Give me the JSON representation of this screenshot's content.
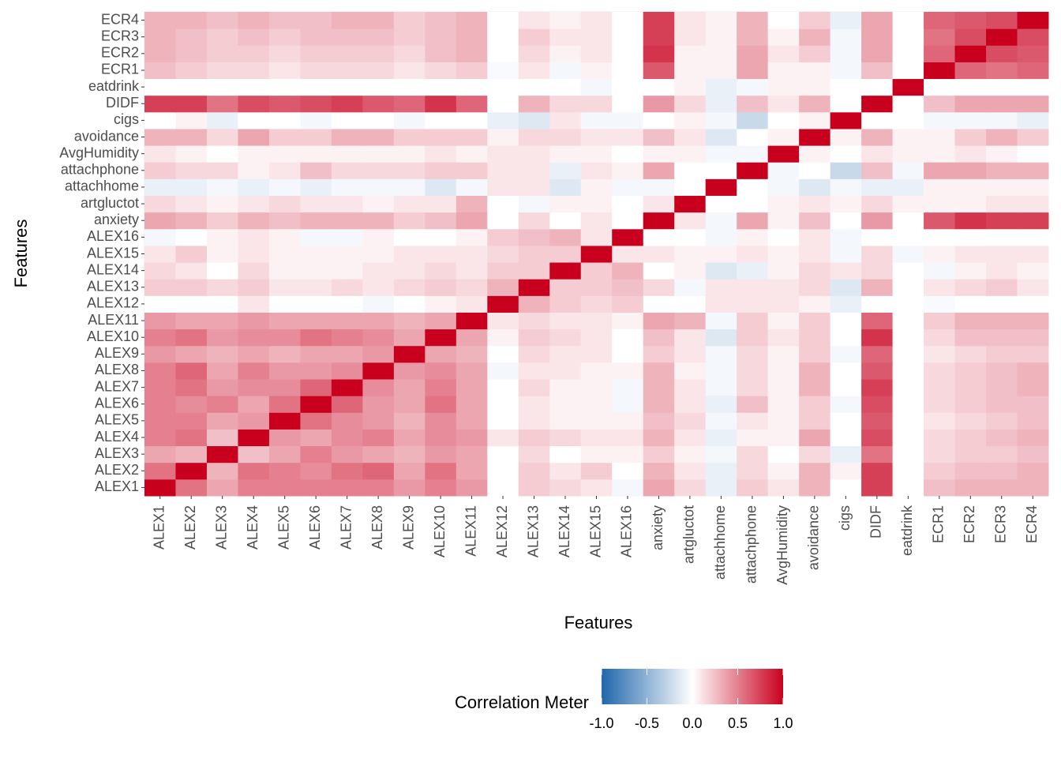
{
  "chart_data": {
    "type": "heatmap",
    "x_label": "Features",
    "y_label": "Features",
    "x": [
      "ALEX1",
      "ALEX2",
      "ALEX3",
      "ALEX4",
      "ALEX5",
      "ALEX6",
      "ALEX7",
      "ALEX8",
      "ALEX9",
      "ALEX10",
      "ALEX11",
      "ALEX12",
      "ALEX13",
      "ALEX14",
      "ALEX15",
      "ALEX16",
      "anxiety",
      "artgluctot",
      "attachhome",
      "attachphone",
      "AvgHumidity",
      "avoidance",
      "cigs",
      "DIDF",
      "eatdrink",
      "ECR1",
      "ECR2",
      "ECR3",
      "ECR4"
    ],
    "y": [
      "ALEX1",
      "ALEX2",
      "ALEX3",
      "ALEX4",
      "ALEX5",
      "ALEX6",
      "ALEX7",
      "ALEX8",
      "ALEX9",
      "ALEX10",
      "ALEX11",
      "ALEX12",
      "ALEX13",
      "ALEX14",
      "ALEX15",
      "ALEX16",
      "anxiety",
      "artgluctot",
      "attachhome",
      "attachphone",
      "AvgHumidity",
      "avoidance",
      "cigs",
      "DIDF",
      "eatdrink",
      "ECR1",
      "ECR2",
      "ECR3",
      "ECR4"
    ],
    "values": [
      [
        1,
        0.55,
        0.35,
        0.5,
        0.5,
        0.5,
        0.5,
        0.5,
        0.4,
        0.5,
        0.4,
        0,
        0.2,
        0.15,
        0.1,
        -0.05,
        0.35,
        0.15,
        -0.1,
        0.2,
        0.1,
        0.3,
        0,
        0.75,
        0,
        0.25,
        0.3,
        0.3,
        0.3
      ],
      [
        0.55,
        1,
        0.3,
        0.55,
        0.5,
        0.45,
        0.55,
        0.6,
        0.35,
        0.55,
        0.35,
        0,
        0.2,
        0.1,
        0.2,
        0,
        0.3,
        0.1,
        -0.1,
        0.15,
        0.05,
        0.3,
        0.05,
        0.75,
        0,
        0.2,
        0.25,
        0.25,
        0.3
      ],
      [
        0.35,
        0.3,
        1,
        0.25,
        0.35,
        0.5,
        0.4,
        0.35,
        0.3,
        0.4,
        0.35,
        0,
        0.15,
        0,
        0.05,
        0.05,
        0.2,
        0.05,
        -0.05,
        0.15,
        0,
        0.15,
        -0.1,
        0.55,
        0,
        0.15,
        0.2,
        0.2,
        0.25
      ],
      [
        0.5,
        0.55,
        0.25,
        1,
        0.4,
        0.35,
        0.45,
        0.5,
        0.35,
        0.45,
        0.4,
        0.1,
        0.2,
        0.15,
        0.1,
        0.1,
        0.3,
        0.1,
        -0.1,
        0.05,
        0.05,
        0.35,
        0,
        0.7,
        0,
        0.15,
        0.2,
        0.25,
        0.3
      ],
      [
        0.5,
        0.5,
        0.35,
        0.4,
        1,
        0.55,
        0.45,
        0.4,
        0.3,
        0.45,
        0.35,
        0,
        0.1,
        0.05,
        0.05,
        0.05,
        0.25,
        0.15,
        -0.05,
        0.1,
        0.05,
        0.2,
        0,
        0.65,
        0,
        0.1,
        0.15,
        0.2,
        0.25
      ],
      [
        0.5,
        0.45,
        0.5,
        0.35,
        0.55,
        1,
        0.6,
        0.4,
        0.35,
        0.55,
        0.35,
        0,
        0.1,
        0.05,
        0.05,
        -0.05,
        0.3,
        0.1,
        -0.1,
        0.25,
        0.05,
        0.2,
        -0.05,
        0.7,
        0,
        0.15,
        0.2,
        0.25,
        0.25
      ],
      [
        0.5,
        0.55,
        0.4,
        0.45,
        0.45,
        0.6,
        1,
        0.45,
        0.35,
        0.5,
        0.35,
        0,
        0.15,
        0.05,
        0.05,
        -0.05,
        0.3,
        0.1,
        -0.05,
        0.15,
        0.05,
        0.3,
        0,
        0.75,
        0,
        0.15,
        0.2,
        0.25,
        0.3
      ],
      [
        0.5,
        0.6,
        0.35,
        0.5,
        0.4,
        0.4,
        0.45,
        1,
        0.4,
        0.45,
        0.35,
        -0.05,
        0.1,
        0.1,
        0.05,
        0.05,
        0.3,
        0.05,
        -0.05,
        0.15,
        0.05,
        0.3,
        0,
        0.65,
        0,
        0.15,
        0.2,
        0.25,
        0.3
      ],
      [
        0.4,
        0.35,
        0.3,
        0.35,
        0.3,
        0.35,
        0.35,
        0.4,
        1,
        0.35,
        0.3,
        0,
        0.15,
        0.1,
        0.1,
        0,
        0.2,
        0.1,
        -0.05,
        0.15,
        0.05,
        0.2,
        -0.05,
        0.6,
        0,
        0.1,
        0.15,
        0.2,
        0.2
      ],
      [
        0.5,
        0.55,
        0.4,
        0.45,
        0.45,
        0.55,
        0.5,
        0.45,
        0.35,
        1,
        0.35,
        0.05,
        0.2,
        0.15,
        0.1,
        0,
        0.25,
        0.1,
        -0.15,
        0.2,
        0.1,
        0.2,
        0,
        0.8,
        0,
        0.15,
        0.25,
        0.25,
        0.25
      ],
      [
        0.4,
        0.35,
        0.35,
        0.4,
        0.35,
        0.35,
        0.35,
        0.35,
        0.3,
        0.35,
        1,
        0.1,
        0.15,
        0.1,
        0.1,
        0.05,
        0.35,
        0.3,
        -0.05,
        0.2,
        0.05,
        0.2,
        0,
        0.6,
        0,
        0.2,
        0.3,
        0.3,
        0.3
      ],
      [
        0,
        0,
        0,
        0.1,
        0,
        0,
        0,
        -0.05,
        0,
        0.05,
        0.1,
        1,
        0.3,
        0.2,
        0.15,
        0.2,
        0,
        0,
        0.1,
        0.1,
        0.1,
        0.05,
        -0.1,
        0,
        0,
        -0.03,
        0,
        0,
        0
      ],
      [
        0.2,
        0.2,
        0.15,
        0.2,
        0.1,
        0.1,
        0.15,
        0.1,
        0.15,
        0.2,
        0.15,
        0.3,
        1,
        0.2,
        0.2,
        0.25,
        0.15,
        -0.05,
        0.1,
        0.1,
        0.1,
        0.15,
        -0.15,
        0.3,
        0,
        0.1,
        0.15,
        0.2,
        0.1
      ],
      [
        0.15,
        0.1,
        0,
        0.15,
        0.05,
        0.05,
        0.05,
        0.1,
        0.1,
        0.15,
        0.1,
        0.2,
        0.2,
        1,
        0.2,
        0.3,
        0,
        0.05,
        -0.15,
        -0.1,
        0.05,
        0.15,
        0.1,
        0.15,
        0,
        -0.05,
        0.05,
        0.1,
        0.05
      ],
      [
        0.1,
        0.2,
        0.05,
        0.1,
        0.05,
        0.05,
        0.05,
        0.05,
        0.1,
        0.1,
        0.1,
        0.15,
        0.2,
        0.2,
        1,
        0.1,
        0.1,
        0.05,
        0.05,
        0.1,
        0.05,
        0.1,
        -0.05,
        0.15,
        -0.05,
        0.05,
        0.1,
        0.1,
        0.1
      ],
      [
        -0.05,
        0,
        0.05,
        0.1,
        0.05,
        -0.05,
        -0.05,
        0.05,
        0,
        0,
        0.05,
        0.2,
        0.25,
        0.3,
        0.1,
        1,
        0,
        0,
        -0.05,
        0.05,
        0,
        0.1,
        -0.05,
        0,
        0,
        0,
        0,
        0,
        0
      ],
      [
        0.35,
        0.3,
        0.2,
        0.3,
        0.25,
        0.3,
        0.3,
        0.3,
        0.2,
        0.25,
        0.35,
        0,
        0.15,
        0,
        0.1,
        0,
        1,
        0.1,
        -0.05,
        0.35,
        0.05,
        0.25,
        0,
        0.4,
        0,
        0.65,
        0.8,
        0.75,
        0.75
      ],
      [
        0.15,
        0.1,
        0.05,
        0.1,
        0.15,
        0.1,
        0.1,
        0.05,
        0.1,
        0.1,
        0.3,
        0,
        -0.05,
        0.05,
        0.05,
        0,
        0.1,
        1,
        0,
        0,
        0.05,
        0.1,
        0.05,
        0.15,
        0.05,
        0.05,
        0.05,
        0.1,
        0.1
      ],
      [
        -0.1,
        -0.1,
        -0.05,
        -0.1,
        -0.05,
        -0.1,
        -0.05,
        -0.05,
        -0.05,
        -0.15,
        -0.05,
        0.1,
        0.1,
        -0.15,
        0.05,
        -0.05,
        -0.05,
        0,
        1,
        0,
        -0.05,
        -0.15,
        -0.05,
        -0.1,
        -0.1,
        0.05,
        0.05,
        0.05,
        0.05
      ],
      [
        0.2,
        0.15,
        0.15,
        0.05,
        0.1,
        0.25,
        0.15,
        0.15,
        0.15,
        0.2,
        0.2,
        0.1,
        0.1,
        -0.1,
        0.1,
        0.05,
        0.35,
        0,
        0,
        1,
        -0.05,
        0,
        -0.25,
        0.25,
        -0.05,
        0.35,
        0.35,
        0.3,
        0.3
      ],
      [
        0.1,
        0.05,
        0,
        0.05,
        0.05,
        0.05,
        0.05,
        0.05,
        0.05,
        0.1,
        0.05,
        0.1,
        0.1,
        0.05,
        0.05,
        0,
        0.05,
        0.05,
        -0.05,
        -0.05,
        1,
        0.05,
        0,
        0.1,
        0.05,
        0.05,
        0.1,
        0.05,
        0
      ],
      [
        0.3,
        0.3,
        0.15,
        0.35,
        0.2,
        0.2,
        0.3,
        0.3,
        0.2,
        0.2,
        0.2,
        0.05,
        0.15,
        0.15,
        0.1,
        0.1,
        0.25,
        0.1,
        -0.15,
        0,
        0.05,
        1,
        0.05,
        0.3,
        0.05,
        0.05,
        0.2,
        0.3,
        0.2
      ],
      [
        0,
        0.05,
        -0.1,
        0,
        0,
        -0.05,
        0,
        0,
        -0.05,
        0,
        0,
        -0.1,
        -0.15,
        0.1,
        -0.05,
        -0.05,
        0,
        0.05,
        -0.05,
        -0.25,
        0,
        0.05,
        1,
        0,
        0,
        -0.05,
        -0.05,
        -0.05,
        -0.1
      ],
      [
        0.75,
        0.75,
        0.55,
        0.7,
        0.65,
        0.7,
        0.75,
        0.65,
        0.6,
        0.8,
        0.6,
        0,
        0.3,
        0.15,
        0.15,
        0,
        0.4,
        0.15,
        -0.1,
        0.25,
        0.1,
        0.3,
        0,
        1,
        0,
        0.25,
        0.35,
        0.35,
        0.35
      ],
      [
        0,
        0,
        0,
        0,
        0,
        0,
        0,
        0,
        0,
        0,
        0,
        0,
        0,
        0,
        -0.05,
        0,
        0,
        0.05,
        -0.1,
        -0.05,
        0.05,
        0.05,
        0,
        0,
        1,
        0,
        0,
        0,
        0
      ],
      [
        0.25,
        0.2,
        0.15,
        0.15,
        0.1,
        0.15,
        0.15,
        0.15,
        0.1,
        0.15,
        0.2,
        -0.03,
        0.1,
        -0.05,
        0.05,
        0,
        0.65,
        0.05,
        0.05,
        0.35,
        0.05,
        0.05,
        -0.05,
        0.25,
        0,
        1,
        0.6,
        0.55,
        0.6
      ],
      [
        0.3,
        0.25,
        0.2,
        0.2,
        0.15,
        0.2,
        0.2,
        0.2,
        0.15,
        0.25,
        0.3,
        0,
        0.15,
        0.05,
        0.1,
        0,
        0.8,
        0.05,
        0.05,
        0.35,
        0.1,
        0.2,
        -0.05,
        0.35,
        0,
        0.6,
        1,
        0.7,
        0.65
      ],
      [
        0.3,
        0.25,
        0.2,
        0.25,
        0.2,
        0.25,
        0.25,
        0.25,
        0.2,
        0.25,
        0.3,
        0,
        0.2,
        0.1,
        0.1,
        0,
        0.75,
        0.1,
        0.05,
        0.3,
        0.05,
        0.3,
        -0.05,
        0.35,
        0,
        0.55,
        0.7,
        1,
        0.7
      ],
      [
        0.3,
        0.3,
        0.25,
        0.3,
        0.25,
        0.25,
        0.3,
        0.3,
        0.2,
        0.25,
        0.3,
        0,
        0.1,
        0.05,
        0.1,
        0,
        0.75,
        0.1,
        0.05,
        0.3,
        0,
        0.2,
        -0.1,
        0.35,
        0,
        0.6,
        0.65,
        0.7,
        1
      ]
    ],
    "legend_title": "Correlation Meter",
    "colors": [
      "#2166ac",
      "#ffffff",
      "#c8001e"
    ],
    "clim": [
      -1,
      1
    ],
    "cticks": [
      {
        "value": -1,
        "label": "-1.0"
      },
      {
        "value": -0.5,
        "label": "-0.5"
      },
      {
        "value": 0,
        "label": "0.0"
      },
      {
        "value": 0.5,
        "label": "0.5"
      },
      {
        "value": 1,
        "label": "1.0"
      }
    ]
  }
}
